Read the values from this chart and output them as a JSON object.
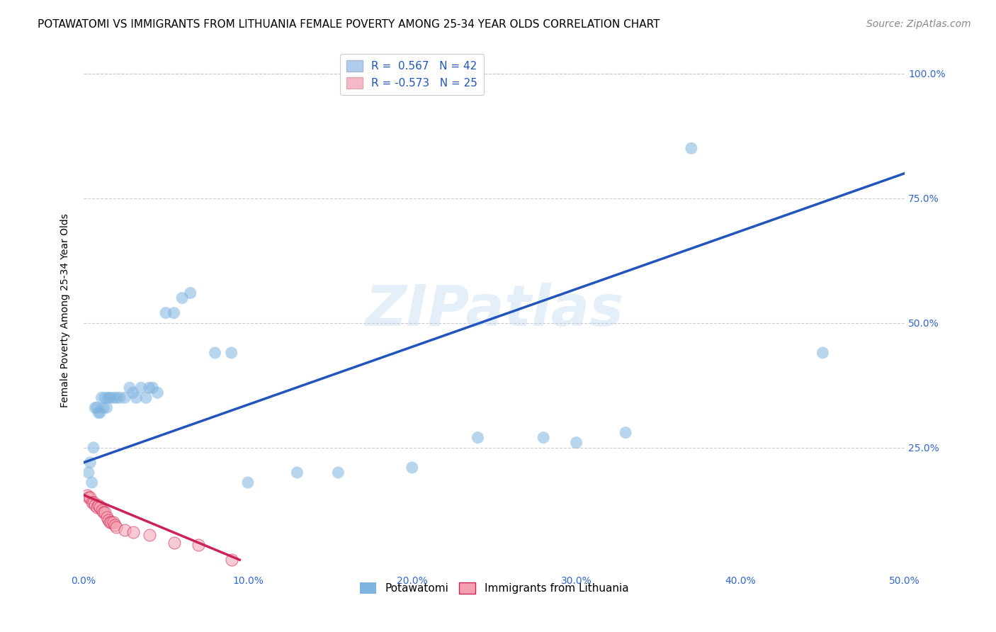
{
  "title": "POTAWATOMI VS IMMIGRANTS FROM LITHUANIA FEMALE POVERTY AMONG 25-34 YEAR OLDS CORRELATION CHART",
  "source": "Source: ZipAtlas.com",
  "ylabel": "Female Poverty Among 25-34 Year Olds",
  "xlim": [
    0.0,
    0.5
  ],
  "ylim": [
    0.0,
    1.05
  ],
  "xtick_labels": [
    "0.0%",
    "10.0%",
    "20.0%",
    "30.0%",
    "40.0%",
    "50.0%"
  ],
  "xtick_vals": [
    0.0,
    0.1,
    0.2,
    0.3,
    0.4,
    0.5
  ],
  "ytick_labels": [
    "25.0%",
    "50.0%",
    "75.0%",
    "100.0%"
  ],
  "ytick_vals": [
    0.25,
    0.5,
    0.75,
    1.0
  ],
  "grid_color": "#cccccc",
  "background_color": "#ffffff",
  "blue_color": "#7fb3e0",
  "pink_color": "#f4a0b0",
  "line_blue": "#2255bb",
  "line_pink": "#cc2255",
  "R_blue": 0.567,
  "N_blue": 42,
  "R_pink": -0.573,
  "N_pink": 25,
  "legend_label_blue": "Potawatomi",
  "legend_label_pink": "Immigrants from Lithuania",
  "watermark": "ZIPatlas",
  "blue_line_x": [
    0.0,
    0.5
  ],
  "blue_line_y": [
    0.22,
    0.8
  ],
  "pink_line_x": [
    0.0,
    0.095
  ],
  "pink_line_y": [
    0.155,
    0.025
  ],
  "blue_points": [
    [
      0.003,
      0.2
    ],
    [
      0.004,
      0.22
    ],
    [
      0.005,
      0.18
    ],
    [
      0.006,
      0.25
    ],
    [
      0.007,
      0.33
    ],
    [
      0.008,
      0.33
    ],
    [
      0.009,
      0.32
    ],
    [
      0.01,
      0.32
    ],
    [
      0.011,
      0.35
    ],
    [
      0.012,
      0.33
    ],
    [
      0.013,
      0.35
    ],
    [
      0.014,
      0.33
    ],
    [
      0.015,
      0.35
    ],
    [
      0.016,
      0.35
    ],
    [
      0.018,
      0.35
    ],
    [
      0.02,
      0.35
    ],
    [
      0.022,
      0.35
    ],
    [
      0.025,
      0.35
    ],
    [
      0.028,
      0.37
    ],
    [
      0.03,
      0.36
    ],
    [
      0.032,
      0.35
    ],
    [
      0.035,
      0.37
    ],
    [
      0.038,
      0.35
    ],
    [
      0.04,
      0.37
    ],
    [
      0.042,
      0.37
    ],
    [
      0.045,
      0.36
    ],
    [
      0.05,
      0.52
    ],
    [
      0.055,
      0.52
    ],
    [
      0.06,
      0.55
    ],
    [
      0.065,
      0.56
    ],
    [
      0.08,
      0.44
    ],
    [
      0.09,
      0.44
    ],
    [
      0.1,
      0.18
    ],
    [
      0.13,
      0.2
    ],
    [
      0.155,
      0.2
    ],
    [
      0.2,
      0.21
    ],
    [
      0.24,
      0.27
    ],
    [
      0.28,
      0.27
    ],
    [
      0.3,
      0.26
    ],
    [
      0.33,
      0.28
    ],
    [
      0.37,
      0.85
    ],
    [
      0.45,
      0.44
    ]
  ],
  "pink_points": [
    [
      0.002,
      0.155
    ],
    [
      0.003,
      0.15
    ],
    [
      0.004,
      0.15
    ],
    [
      0.005,
      0.14
    ],
    [
      0.006,
      0.14
    ],
    [
      0.007,
      0.135
    ],
    [
      0.008,
      0.13
    ],
    [
      0.009,
      0.135
    ],
    [
      0.01,
      0.13
    ],
    [
      0.011,
      0.125
    ],
    [
      0.012,
      0.12
    ],
    [
      0.013,
      0.12
    ],
    [
      0.014,
      0.11
    ],
    [
      0.015,
      0.105
    ],
    [
      0.016,
      0.1
    ],
    [
      0.017,
      0.1
    ],
    [
      0.018,
      0.1
    ],
    [
      0.019,
      0.095
    ],
    [
      0.02,
      0.09
    ],
    [
      0.025,
      0.085
    ],
    [
      0.03,
      0.08
    ],
    [
      0.04,
      0.075
    ],
    [
      0.055,
      0.06
    ],
    [
      0.07,
      0.055
    ],
    [
      0.09,
      0.025
    ]
  ],
  "title_fontsize": 11,
  "axis_fontsize": 10,
  "tick_fontsize": 10,
  "source_fontsize": 10,
  "legend_fontsize": 11
}
